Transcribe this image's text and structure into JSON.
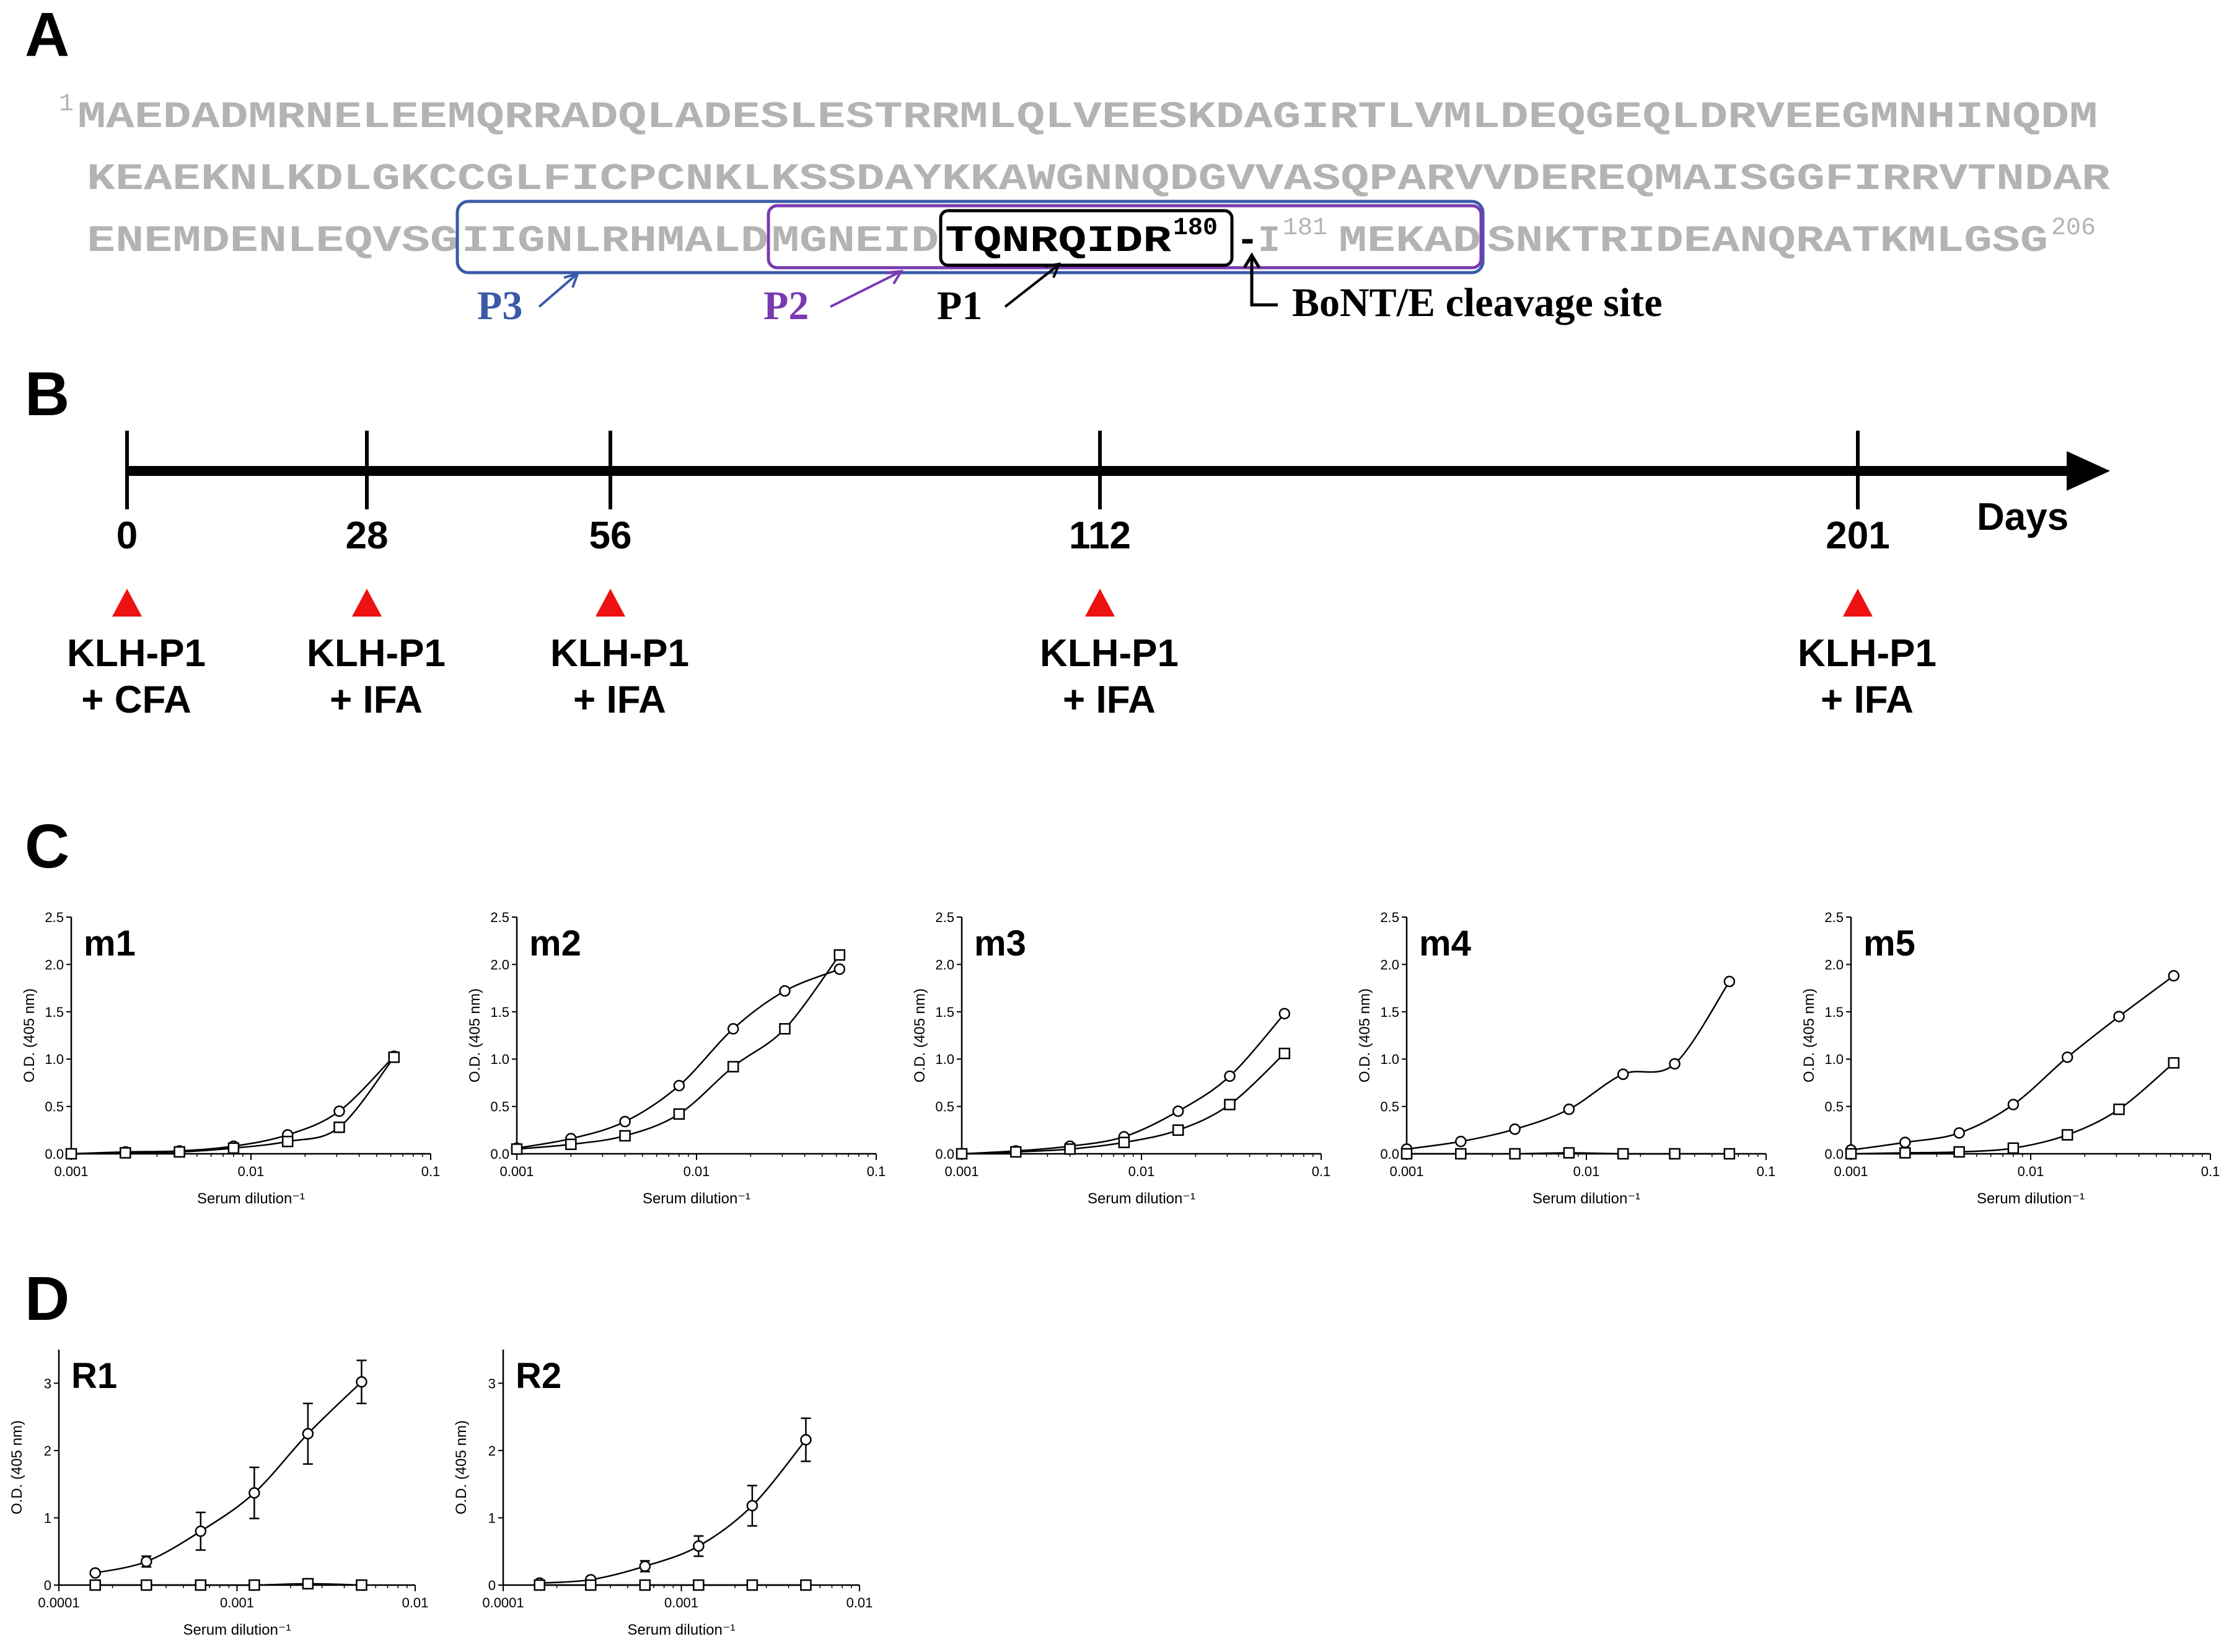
{
  "panels": {
    "A": "A",
    "B": "B",
    "C": "C",
    "D": "D"
  },
  "sequence": {
    "line1_start_num": "1",
    "line1": "MAEDADMRNELEEMQRRADQLADESLESTRRMLQLVEESKDAGIRTLVMLDEQGEQLDRVEEGMNHINQDM",
    "line2": "KEAEKNLKDLGKCCGLFICPCNKLKSSDAYKKAWGNNQDGVVASQPARVVDEREQMAISGGFIRRVTNDAR",
    "line3_pre": "ENEMDENLEQVSG",
    "p3_part": "IIGNLRHMALD",
    "p2_part": "MGNEID",
    "p1_part": "TQNRQIDR",
    "p1_end_num": "180",
    "dash": "-",
    "after_cleave": "I",
    "after_num": "181",
    "after_p": "MEKAD",
    "line3_post": "SNKTRIDEANQRATKMLGSG",
    "end_num": "206"
  },
  "peptide_labels": {
    "p3": "P3",
    "p2": "P2",
    "p1": "P1",
    "cleavage": "BoNT/E cleavage site",
    "p3_color": "#3a5aa8",
    "p2_color": "#7a3ab0"
  },
  "timeline": {
    "unit": "Days",
    "events": [
      {
        "day": "0",
        "line1": "KLH-P1",
        "line2": "+ CFA"
      },
      {
        "day": "28",
        "line1": "KLH-P1",
        "line2": "+ IFA"
      },
      {
        "day": "56",
        "line1": "KLH-P1",
        "line2": "+ IFA"
      },
      {
        "day": "112",
        "line1": "KLH-P1",
        "line2": "+ IFA"
      },
      {
        "day": "201",
        "line1": "KLH-P1",
        "line2": "+ IFA"
      }
    ],
    "marker_color": "#ee1111"
  },
  "chart_data": [
    {
      "id": "m1",
      "type": "scatter",
      "title": "m1",
      "xlabel": "Serum dilution⁻¹",
      "ylabel": "O.D. (405 nm)",
      "xscale": "log",
      "xlim": [
        0.001,
        0.1
      ],
      "ylim": [
        0,
        2.5
      ],
      "xticks": [
        "0.001",
        "0.01",
        "0.1"
      ],
      "yticks": [
        "0.0",
        "0.5",
        "1.0",
        "1.5",
        "2.0",
        "2.5"
      ],
      "series": [
        {
          "marker": "circle",
          "x": [
            0.001,
            0.002,
            0.004,
            0.008,
            0.016,
            0.031,
            0.0625
          ],
          "y": [
            0.0,
            0.02,
            0.03,
            0.08,
            0.2,
            0.45,
            1.03
          ]
        },
        {
          "marker": "square",
          "x": [
            0.001,
            0.002,
            0.004,
            0.008,
            0.016,
            0.031,
            0.0625
          ],
          "y": [
            0.0,
            0.01,
            0.02,
            0.06,
            0.13,
            0.28,
            1.02
          ]
        }
      ]
    },
    {
      "id": "m2",
      "type": "scatter",
      "title": "m2",
      "xlabel": "Serum dilution⁻¹",
      "ylabel": "O.D. (405 nm)",
      "xscale": "log",
      "xlim": [
        0.001,
        0.1
      ],
      "ylim": [
        0,
        2.5
      ],
      "xticks": [
        "0.001",
        "0.01",
        "0.1"
      ],
      "yticks": [
        "0.0",
        "0.5",
        "1.0",
        "1.5",
        "2.0",
        "2.5"
      ],
      "series": [
        {
          "marker": "circle",
          "x": [
            0.001,
            0.002,
            0.004,
            0.008,
            0.016,
            0.031,
            0.0625
          ],
          "y": [
            0.06,
            0.16,
            0.34,
            0.72,
            1.32,
            1.72,
            1.95
          ]
        },
        {
          "marker": "square",
          "x": [
            0.001,
            0.002,
            0.004,
            0.008,
            0.016,
            0.031,
            0.0625
          ],
          "y": [
            0.05,
            0.1,
            0.19,
            0.42,
            0.92,
            1.32,
            2.1
          ]
        }
      ]
    },
    {
      "id": "m3",
      "type": "scatter",
      "title": "m3",
      "xlabel": "Serum dilution⁻¹",
      "ylabel": "O.D. (405 nm)",
      "xscale": "log",
      "xlim": [
        0.001,
        0.1
      ],
      "ylim": [
        0,
        2.5
      ],
      "xticks": [
        "0.001",
        "0.01",
        "0.1"
      ],
      "yticks": [
        "0.0",
        "0.5",
        "1.0",
        "1.5",
        "2.0",
        "2.5"
      ],
      "series": [
        {
          "marker": "circle",
          "x": [
            0.001,
            0.002,
            0.004,
            0.008,
            0.016,
            0.031,
            0.0625
          ],
          "y": [
            0.0,
            0.03,
            0.08,
            0.18,
            0.45,
            0.82,
            1.48
          ]
        },
        {
          "marker": "square",
          "x": [
            0.001,
            0.002,
            0.004,
            0.008,
            0.016,
            0.031,
            0.0625
          ],
          "y": [
            0.0,
            0.02,
            0.05,
            0.12,
            0.25,
            0.52,
            1.06
          ]
        }
      ]
    },
    {
      "id": "m4",
      "type": "scatter",
      "title": "m4",
      "xlabel": "Serum dilution⁻¹",
      "ylabel": "O.D. (405 nm)",
      "xscale": "log",
      "xlim": [
        0.001,
        0.1
      ],
      "ylim": [
        0,
        2.5
      ],
      "xticks": [
        "0.001",
        "0.01",
        "0.1"
      ],
      "yticks": [
        "0.0",
        "0.5",
        "1.0",
        "1.5",
        "2.0",
        "2.5"
      ],
      "series": [
        {
          "marker": "circle",
          "x": [
            0.001,
            0.002,
            0.004,
            0.008,
            0.016,
            0.031,
            0.0625
          ],
          "y": [
            0.05,
            0.13,
            0.26,
            0.47,
            0.84,
            0.95,
            1.82
          ]
        },
        {
          "marker": "square",
          "x": [
            0.001,
            0.002,
            0.004,
            0.008,
            0.016,
            0.031,
            0.0625
          ],
          "y": [
            0.0,
            0.0,
            0.0,
            0.01,
            0.0,
            0.0,
            0.0
          ]
        }
      ]
    },
    {
      "id": "m5",
      "type": "scatter",
      "title": "m5",
      "xlabel": "Serum dilution⁻¹",
      "ylabel": "O.D. (405 nm)",
      "xscale": "log",
      "xlim": [
        0.001,
        0.1
      ],
      "ylim": [
        0,
        2.5
      ],
      "xticks": [
        "0.001",
        "0.01",
        "0.1"
      ],
      "yticks": [
        "0.0",
        "0.5",
        "1.0",
        "1.5",
        "2.0",
        "2.5"
      ],
      "series": [
        {
          "marker": "circle",
          "x": [
            0.001,
            0.002,
            0.004,
            0.008,
            0.016,
            0.031,
            0.0625
          ],
          "y": [
            0.04,
            0.12,
            0.22,
            0.52,
            1.02,
            1.45,
            1.88
          ]
        },
        {
          "marker": "square",
          "x": [
            0.001,
            0.002,
            0.004,
            0.008,
            0.016,
            0.031,
            0.0625
          ],
          "y": [
            0.0,
            0.01,
            0.02,
            0.06,
            0.2,
            0.47,
            0.96
          ]
        }
      ]
    },
    {
      "id": "R1",
      "type": "scatter",
      "title": "R1",
      "xlabel": "Serum dilution⁻¹",
      "ylabel": "O.D. (405 nm)",
      "xscale": "log",
      "xlim": [
        0.0001,
        0.01
      ],
      "ylim": [
        0,
        3.5
      ],
      "xticks": [
        "0.0001",
        "0.001",
        "0.01"
      ],
      "yticks": [
        "0",
        "1",
        "2",
        "3"
      ],
      "series": [
        {
          "marker": "circle",
          "x": [
            0.00016,
            0.00031,
            0.000625,
            0.00125,
            0.0025,
            0.005
          ],
          "y": [
            0.18,
            0.35,
            0.8,
            1.37,
            2.25,
            3.02
          ],
          "err": [
            0.03,
            0.08,
            0.28,
            0.38,
            0.45,
            0.32
          ]
        },
        {
          "marker": "square",
          "x": [
            0.00016,
            0.00031,
            0.000625,
            0.00125,
            0.0025,
            0.005
          ],
          "y": [
            0.0,
            0.0,
            0.0,
            0.0,
            0.02,
            0.0
          ]
        }
      ]
    },
    {
      "id": "R2",
      "type": "scatter",
      "title": "R2",
      "xlabel": "Serum dilution⁻¹",
      "ylabel": "O.D. (405 nm)",
      "xscale": "log",
      "xlim": [
        0.0001,
        0.01
      ],
      "ylim": [
        0,
        3.5
      ],
      "xticks": [
        "0.0001",
        "0.001",
        "0.01"
      ],
      "yticks": [
        "0",
        "1",
        "2",
        "3"
      ],
      "series": [
        {
          "marker": "circle",
          "x": [
            0.00016,
            0.00031,
            0.000625,
            0.00125,
            0.0025,
            0.005
          ],
          "y": [
            0.03,
            0.08,
            0.28,
            0.58,
            1.18,
            2.16
          ],
          "err": [
            0.02,
            0.04,
            0.08,
            0.15,
            0.3,
            0.32
          ]
        },
        {
          "marker": "square",
          "x": [
            0.00016,
            0.00031,
            0.000625,
            0.00125,
            0.0025,
            0.005
          ],
          "y": [
            0.0,
            0.0,
            0.0,
            0.0,
            0.0,
            0.0
          ]
        }
      ]
    }
  ]
}
